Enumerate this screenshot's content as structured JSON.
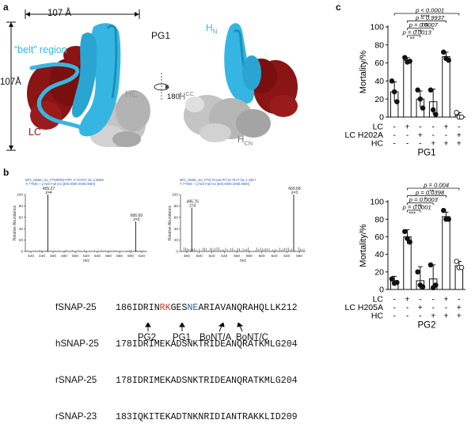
{
  "panels": {
    "a": {
      "letter": "a",
      "width_label": "107 Å",
      "height_label": "107Å",
      "title": "PG1",
      "belt_label": "“belt” region",
      "hc_label": "HC",
      "lc_label": "LC",
      "rotation_label": "180˚",
      "hn_label_main": "H",
      "hn_label_sub": "N",
      "hcc_label_main": "H",
      "hcc_label_sub": "CC",
      "hcn_label_main": "H",
      "hcn_label_sub": "CN",
      "colors": {
        "belt": "#35b6e2",
        "lc": "#8b1414",
        "hc": "#bdbdbd"
      }
    },
    "b": {
      "letter": "b",
      "spectrum1": {
        "header1": "BP1_DB6K_S1_PTM#RDH7RT 17.97#AT NL:2.98E8",
        "header2": "T: FTMS + p NSI Full ms [300.0000-2000.0000]",
        "y_label": "Relative Abundance",
        "x_label": "m/z",
        "x_ticks": [
          "420",
          "440",
          "460",
          "480",
          "500",
          "520",
          "540",
          "560",
          "580",
          "600",
          "620"
        ],
        "y_ticks": [
          "0",
          "20",
          "40",
          "60",
          "80",
          "100"
        ],
        "peaks": [
          {
            "mz": "455.27",
            "z": "z=4"
          },
          {
            "mz": "606.69",
            "z": "z=3"
          }
        ]
      },
      "spectrum2": {
        "header1": "BP1_DB6K_S2_PTM #1216 RT:12.75AT NL:1.43E7",
        "header2": "T: FTMS + p NSI Full ms [300.0000-2000.0000]",
        "y_label": "Relative Abundance",
        "x_label": "m/z",
        "x_ticks": [
          "480",
          "500",
          "520",
          "540",
          "560",
          "580",
          "600",
          "620",
          "640",
          "660"
        ],
        "y_ticks": [
          "0",
          "20",
          "40",
          "60",
          "80",
          "100"
        ],
        "peaks": [
          {
            "mz": "495.76",
            "z": "z=4"
          },
          {
            "mz": "660.68",
            "z": "z=3"
          }
        ]
      },
      "alignment": [
        {
          "name": "fSNAP-25",
          "start": "186",
          "p1": "IDRIN",
          "p2": "RK",
          "p3": "GES",
          "p4": "NE",
          "p5": "ARIAVANQRAHQLLK",
          "end": "212"
        },
        {
          "name": "hSNAP-25",
          "start": "178",
          "p1": "IDRIMEKADSNKTRIDEANQRATKMLG",
          "p2": "",
          "p3": "",
          "p4": "",
          "p5": "",
          "end": "204"
        },
        {
          "name": "rSNAP-25",
          "start": "178",
          "p1": "IDRIMEKADSNKTRIDEANQRATKMLG",
          "p2": "",
          "p3": "",
          "p4": "",
          "p5": "",
          "end": "204"
        },
        {
          "name": "rSNAP-23",
          "start": "183",
          "p1": "IQKITEKADTNKNRIDIANTRAKKLID",
          "p2": "",
          "p3": "",
          "p4": "",
          "p5": "",
          "end": "209"
        }
      ],
      "site_labels": [
        "PG2",
        "PG1",
        "BoNT/A",
        "BoNT/C"
      ],
      "colors": {
        "red": "#c0392b",
        "blue": "#2d5fa8"
      }
    },
    "c": {
      "letter": "c",
      "y_label": "Mortality/%",
      "row_labels": [
        "LC",
        "LC H202A",
        "HC"
      ],
      "row_labels_2": [
        "LC",
        "LC H205A",
        "HC"
      ],
      "signs": [
        [
          "-",
          "+",
          "-",
          "-",
          "+",
          "-"
        ],
        [
          "-",
          "-",
          "+",
          "-",
          "-",
          "+"
        ],
        [
          "-",
          "-",
          "-",
          "+",
          "+",
          "+"
        ]
      ]
    }
  },
  "chart_data": [
    {
      "type": "bar",
      "title": "PG1",
      "xlabel": "",
      "ylabel": "Mortality/%",
      "ylim": [
        0,
        100
      ],
      "yticks": [
        0,
        20,
        40,
        60,
        80,
        100
      ],
      "categories": [
        "1",
        "2",
        "3",
        "4",
        "5",
        "6"
      ],
      "values": [
        28,
        63,
        20,
        17,
        67,
        2
      ],
      "errors": [
        11,
        3,
        9,
        14,
        5,
        3
      ],
      "points": [
        [
          40,
          28,
          17
        ],
        [
          66,
          61,
          62
        ],
        [
          30,
          20,
          10
        ],
        [
          30,
          8,
          3
        ],
        [
          72,
          65,
          63
        ],
        [
          5,
          0,
          0
        ]
      ],
      "significance": [
        {
          "from": 1,
          "to": 6,
          "label": "p < 0.0001",
          "stars": "****"
        },
        {
          "from": 2,
          "to": 5,
          "label": "p = 0.9937",
          "stars": "ns"
        },
        {
          "from": 2,
          "to": 4,
          "label": "p = 0.0007",
          "stars": "***"
        },
        {
          "from": 2,
          "to": 3,
          "label": "p = 0.0013",
          "stars": "**"
        }
      ]
    },
    {
      "type": "bar",
      "title": "PG2",
      "xlabel": "",
      "ylabel": "Mortality/%",
      "ylim": [
        0,
        100
      ],
      "yticks": [
        0,
        20,
        40,
        60,
        80,
        100
      ],
      "categories": [
        "1",
        "2",
        "3",
        "4",
        "5",
        "6"
      ],
      "values": [
        10,
        60,
        10,
        12,
        83,
        27
      ],
      "errors": [
        5,
        8,
        16,
        16,
        5,
        5
      ],
      "points": [
        [
          12,
          7,
          8
        ],
        [
          66,
          58,
          54
        ],
        [
          20,
          5,
          3
        ],
        [
          28,
          2,
          5
        ],
        [
          90,
          80,
          80
        ],
        [
          32,
          25,
          25
        ]
      ],
      "significance": [
        {
          "from": 2,
          "to": 6,
          "label": "p = 0.004",
          "stars": "**"
        },
        {
          "from": 2,
          "to": 5,
          "label": "p = 0.0398",
          "stars": "*"
        },
        {
          "from": 2,
          "to": 4,
          "label": "p = 0.0003",
          "stars": "***"
        },
        {
          "from": 2,
          "to": 3,
          "label": "p = 0.0001",
          "stars": "***"
        }
      ]
    }
  ]
}
